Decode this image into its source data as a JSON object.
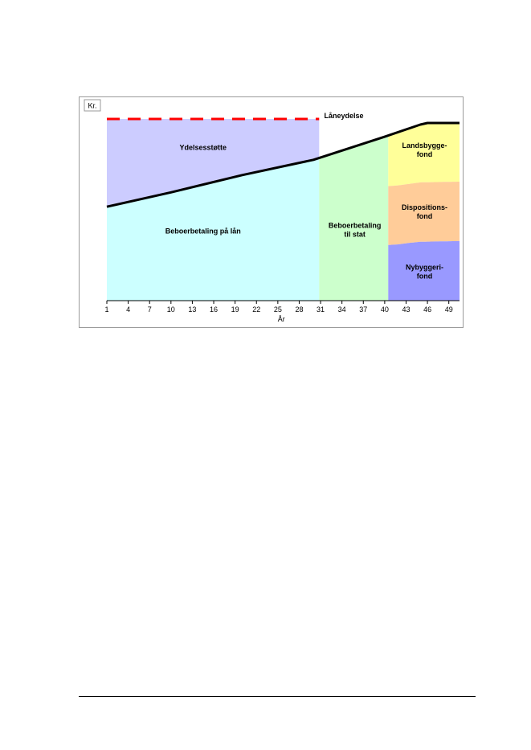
{
  "chart_data": {
    "type": "area",
    "title": "",
    "xlabel": "År",
    "ylabel": "Kr.",
    "xlim": [
      1,
      50.5
    ],
    "x_ticks": [
      1,
      4,
      7,
      10,
      13,
      16,
      19,
      22,
      25,
      28,
      31,
      34,
      37,
      40,
      43,
      46,
      49
    ],
    "grid": false,
    "regions": [
      {
        "name": "Ydelsesstøtte",
        "label": "Ydelsesstøtte",
        "from": 1,
        "to": 30.8,
        "lower": "payment_line",
        "upper": "loan_payment",
        "color": "#ccccff"
      },
      {
        "name": "Beboerbetaling på lån",
        "label": "Beboerbetaling på lån",
        "from": 1,
        "to": 30.8,
        "lower": 0,
        "upper": "payment_line",
        "color": "#ccffff"
      },
      {
        "name": "Beboerbetaling til stat",
        "label": "Beboerbetaling\ntil stat",
        "from": 30.8,
        "to": 40.5,
        "lower": 0,
        "upper": "payment_line",
        "color": "#ccffcc"
      },
      {
        "name": "Landsbyggefond",
        "label": "Landsbygge-\nfond",
        "from": 40.5,
        "to": 50.5,
        "lower": "dispositionsfond_top",
        "upper": "payment_line",
        "color": "#ffff99"
      },
      {
        "name": "Dispositionsfond",
        "label": "Dispositions-\nfond",
        "from": 40.5,
        "to": 50.5,
        "lower": "nybyggerifond_top",
        "upper": "dispositionsfond_top",
        "color": "#ffcc99"
      },
      {
        "name": "Nybyggerifond",
        "label": "Nybyggeri-\nfond",
        "from": 40.5,
        "to": 50.5,
        "lower": 0,
        "upper": "nybyggerifond_top",
        "color": "#9999ff"
      }
    ],
    "series": [
      {
        "name": "Låneydelse",
        "label": "Låneydelse",
        "style": "dashed",
        "color": "#ff0000",
        "x": [
          1,
          30.8
        ],
        "y": [
          100,
          100
        ]
      },
      {
        "name": "payment_line",
        "style": "solid",
        "color": "#000000",
        "x": [
          1,
          10,
          20,
          30,
          40,
          45,
          46,
          50.5
        ],
        "y": [
          51.7,
          59.6,
          69.1,
          77.5,
          90.2,
          96.9,
          97.8,
          97.8
        ]
      },
      {
        "name": "dispositionsfond_top",
        "color": "#ffcc99",
        "x": [
          40.5,
          42,
          43.5,
          45,
          50.5
        ],
        "y": [
          63.0,
          63.5,
          64.3,
          65.1,
          65.5
        ]
      },
      {
        "name": "nybyggerifond_top",
        "color": "#9999ff",
        "x": [
          40.5,
          42,
          43.5,
          45,
          50.5
        ],
        "y": [
          30.6,
          31.0,
          31.8,
          32.4,
          32.8
        ]
      }
    ]
  }
}
